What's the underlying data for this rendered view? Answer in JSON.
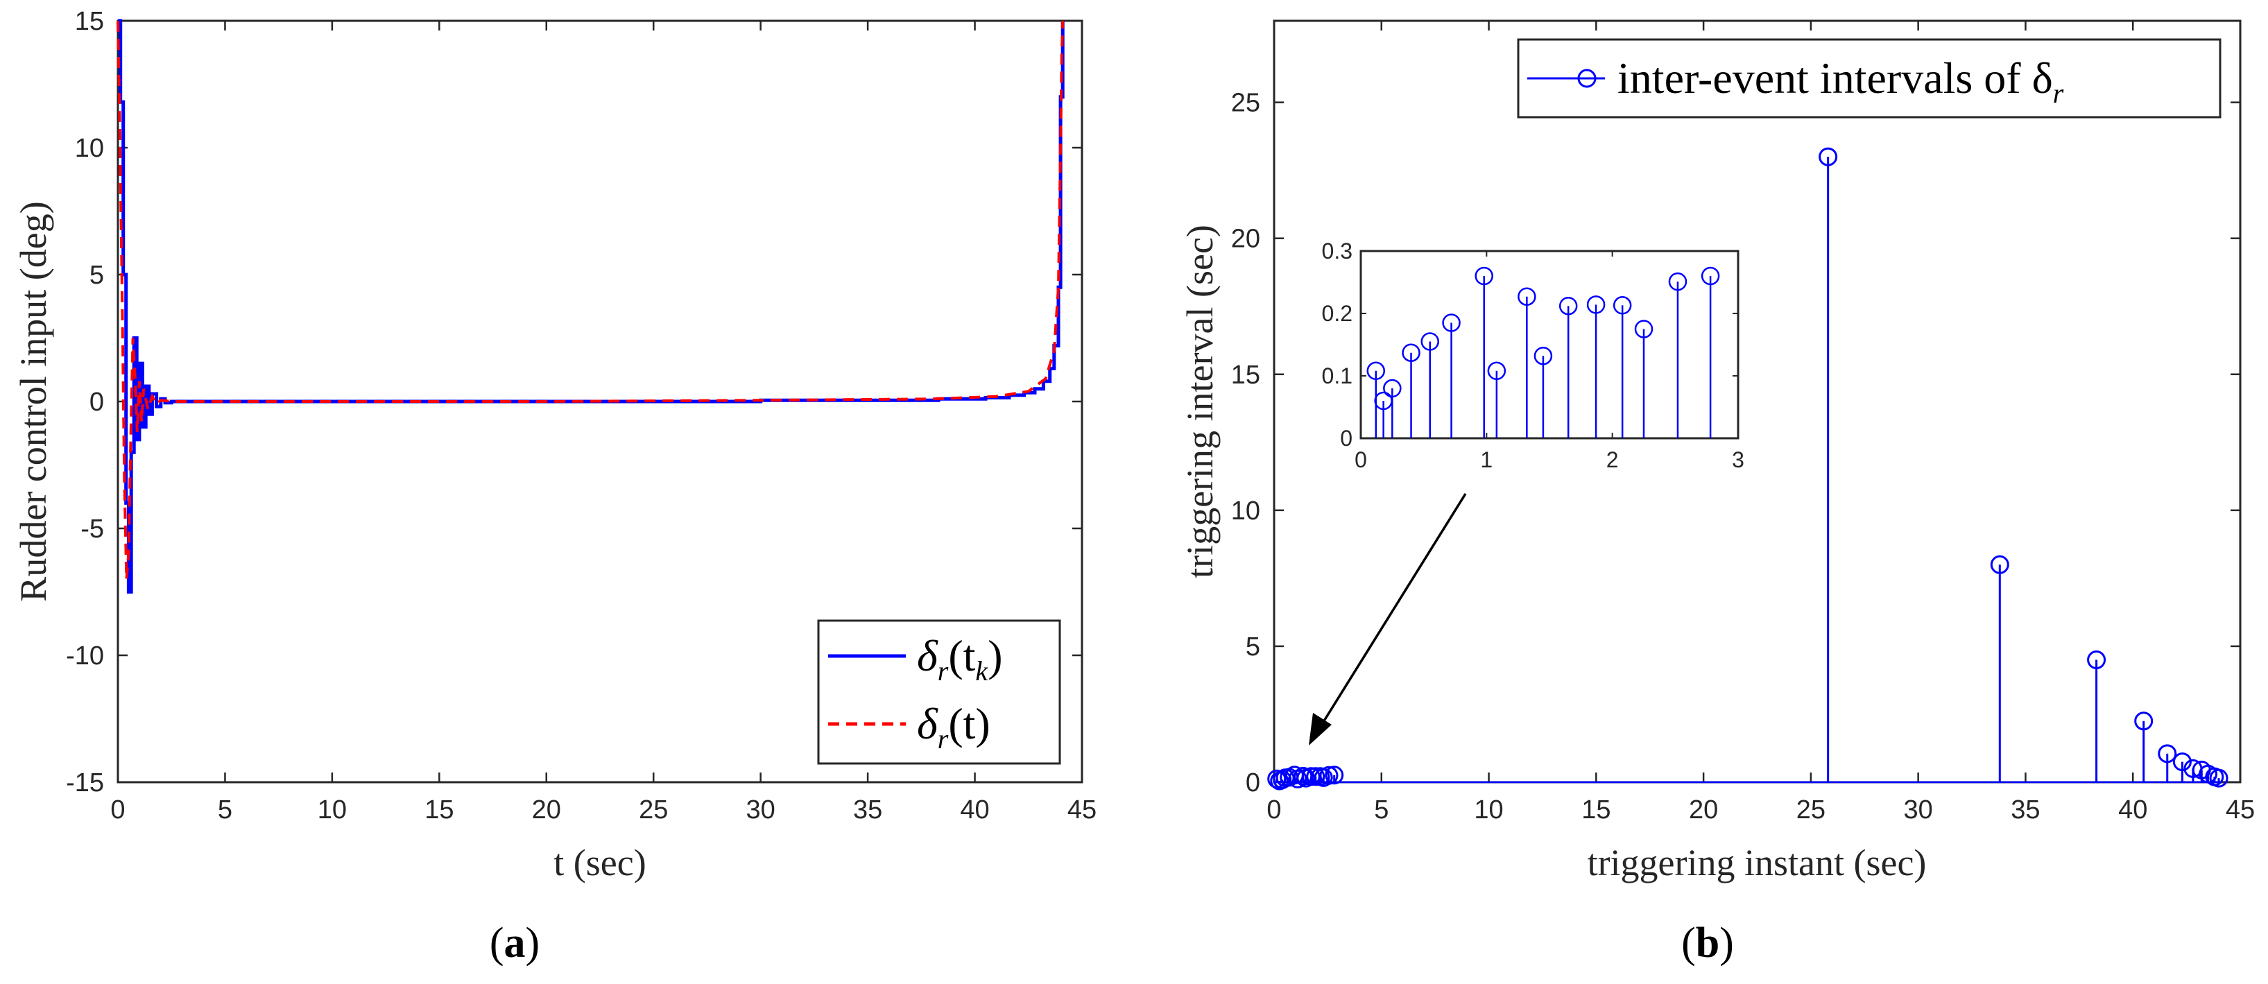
{
  "chart_data": [
    {
      "type": "line",
      "panel_label": "a",
      "title": "",
      "xlabel": "t (sec)",
      "ylabel": "Rudder control input (deg)",
      "xlim": [
        0,
        45
      ],
      "ylim": [
        -15,
        15
      ],
      "xticks": [
        "0",
        "5",
        "10",
        "15",
        "20",
        "25",
        "30",
        "35",
        "40",
        "45"
      ],
      "yticks": [
        "-15",
        "-10",
        "-5",
        "0",
        "5",
        "10",
        "15"
      ],
      "legend": "bottom-right",
      "colors": {
        "delta_r_tk": "#0000ff",
        "delta_r_t": "#ff0000"
      },
      "series": [
        {
          "name": "δr(tk)",
          "style": "solid",
          "x": [
            0.0,
            0.12,
            0.25,
            0.38,
            0.5,
            0.62,
            0.75,
            0.88,
            1.0,
            1.15,
            1.3,
            1.45,
            1.6,
            1.8,
            2.0,
            2.2,
            2.5,
            10.0,
            20.0,
            30.0,
            38.3,
            40.5,
            41.6,
            42.3,
            42.8,
            43.2,
            43.5,
            43.7,
            43.9,
            44.0,
            44.1
          ],
          "y": [
            15.0,
            11.8,
            5.0,
            -4.0,
            -7.5,
            -2.0,
            2.5,
            -1.5,
            1.5,
            -1.0,
            0.6,
            -0.5,
            0.3,
            -0.2,
            0.1,
            -0.05,
            0.0,
            0.0,
            0.0,
            0.05,
            0.1,
            0.15,
            0.25,
            0.35,
            0.5,
            0.8,
            1.3,
            2.2,
            4.5,
            12.0,
            15.0
          ]
        },
        {
          "name": "δr(t)",
          "style": "dashed",
          "x": [
            0.0,
            0.1,
            0.2,
            0.3,
            0.4,
            0.5,
            0.6,
            0.7,
            0.8,
            0.9,
            1.0,
            1.1,
            1.2,
            1.4,
            1.6,
            1.8,
            2.0,
            2.5,
            10.0,
            20.0,
            30.0,
            38.0,
            41.0,
            42.5,
            43.3,
            43.7,
            43.9,
            44.0,
            44.05,
            44.1
          ],
          "y": [
            15.0,
            10.0,
            4.0,
            -3.0,
            -7.0,
            -6.0,
            -1.5,
            2.5,
            1.0,
            -1.2,
            0.8,
            -0.8,
            0.5,
            -0.3,
            0.2,
            -0.1,
            0.05,
            0.0,
            0.0,
            0.0,
            0.05,
            0.1,
            0.2,
            0.4,
            0.9,
            2.0,
            4.5,
            10.0,
            13.5,
            15.0
          ]
        }
      ]
    },
    {
      "type": "scatter",
      "panel_label": "b",
      "title": "",
      "xlabel": "triggering instant (sec)",
      "ylabel": "triggering interval (sec)",
      "xlim": [
        0,
        45
      ],
      "ylim": [
        0,
        28
      ],
      "xticks": [
        "0",
        "5",
        "10",
        "15",
        "20",
        "25",
        "30",
        "35",
        "40",
        "45"
      ],
      "yticks": [
        "0",
        "5",
        "10",
        "15",
        "20",
        "25"
      ],
      "legend": "top-right",
      "color": "#0000ff",
      "series": [
        {
          "name": "inter-event intervals of δr",
          "style": "stem",
          "x": [
            0.12,
            0.25,
            0.38,
            0.52,
            0.7,
            0.95,
            1.1,
            1.35,
            1.48,
            1.72,
            1.93,
            2.15,
            2.3,
            2.55,
            2.8,
            25.8,
            33.8,
            38.3,
            40.5,
            41.6,
            42.3,
            42.8,
            43.2,
            43.5,
            43.8,
            44.0
          ],
          "y": [
            0.12,
            0.05,
            0.09,
            0.16,
            0.18,
            0.26,
            0.12,
            0.22,
            0.15,
            0.21,
            0.21,
            0.21,
            0.17,
            0.25,
            0.26,
            23.0,
            8.0,
            4.5,
            2.25,
            1.05,
            0.75,
            0.5,
            0.45,
            0.3,
            0.2,
            0.15
          ]
        }
      ],
      "inset": {
        "xlim": [
          0,
          3
        ],
        "ylim": [
          0,
          0.3
        ],
        "xticks": [
          "0",
          "1",
          "2",
          "3"
        ],
        "yticks": [
          "0",
          "0.1",
          "0.2",
          "0.3"
        ],
        "x": [
          0.12,
          0.18,
          0.25,
          0.4,
          0.55,
          0.72,
          0.98,
          1.08,
          1.32,
          1.45,
          1.65,
          1.87,
          2.08,
          2.25,
          2.52,
          2.78
        ],
        "y": [
          0.108,
          0.06,
          0.08,
          0.137,
          0.155,
          0.185,
          0.26,
          0.108,
          0.227,
          0.132,
          0.212,
          0.214,
          0.213,
          0.175,
          0.251,
          0.26
        ]
      }
    }
  ],
  "captions": {
    "a": "a",
    "b": "b"
  },
  "legend_a": {
    "s1_main": "δ",
    "s1_sub": "r",
    "s1_arg": "(t",
    "s1_argsub": "k",
    "s1_close": ")",
    "s2_main": "δ",
    "s2_sub": "r",
    "s2_arg": "(t)"
  },
  "legend_b": {
    "text": "inter-event intervals of δ",
    "sub": "r"
  }
}
